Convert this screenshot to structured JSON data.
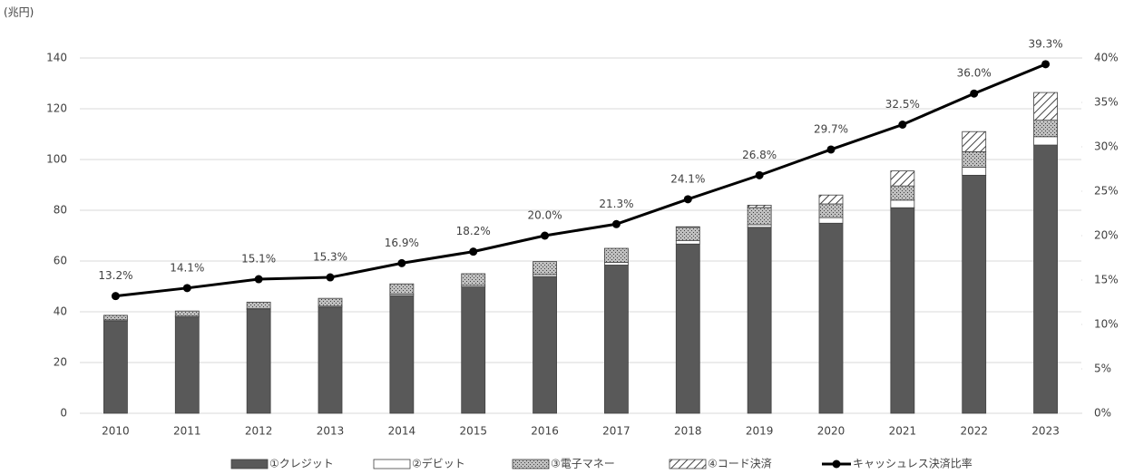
{
  "chart_data": {
    "type": "bar",
    "stacked": true,
    "unit_label": "(兆円)",
    "categories": [
      "2010",
      "2011",
      "2012",
      "2013",
      "2014",
      "2015",
      "2016",
      "2017",
      "2018",
      "2019",
      "2020",
      "2021",
      "2022",
      "2023"
    ],
    "series": [
      {
        "name": "①クレジット",
        "color": "#595959",
        "values": [
          36.4,
          37.9,
          40.9,
          41.8,
          46.4,
          49.8,
          53.9,
          58.4,
          66.7,
          73.3,
          74.9,
          81.0,
          93.8,
          105.7
        ]
      },
      {
        "name": "②デビット",
        "color": "#ffffff",
        "values": [
          0.4,
          0.4,
          0.4,
          0.4,
          0.6,
          0.6,
          0.8,
          1.1,
          1.4,
          1.0,
          2.2,
          3.0,
          3.2,
          3.3
        ]
      },
      {
        "name": "③電子マネー",
        "color": "#a6a6a6",
        "pattern": "dots",
        "values": [
          1.8,
          2.0,
          2.5,
          3.1,
          4.0,
          4.6,
          5.1,
          5.5,
          5.2,
          6.8,
          5.4,
          5.6,
          6.1,
          6.5
        ]
      },
      {
        "name": "④コード決済",
        "color": "#ffffff",
        "pattern": "hatch",
        "values": [
          0,
          0,
          0,
          0,
          0,
          0,
          0,
          0,
          0.2,
          0.9,
          3.5,
          5.9,
          7.9,
          10.9
        ]
      },
      {
        "name": "キャッシュレス決済比率",
        "type": "line",
        "axis": "y2",
        "color": "#000000",
        "values": [
          13.2,
          14.1,
          15.1,
          15.3,
          16.9,
          18.2,
          20.0,
          21.3,
          24.1,
          26.8,
          29.7,
          32.5,
          36.0,
          39.3
        ],
        "value_labels": [
          "13.2%",
          "14.1%",
          "15.1%",
          "15.3%",
          "16.9%",
          "18.2%",
          "20.0%",
          "21.3%",
          "24.1%",
          "26.8%",
          "29.7%",
          "32.5%",
          "36.0%",
          "39.3%"
        ]
      }
    ],
    "ylim": [
      0,
      140
    ],
    "yticks": [
      0,
      20,
      40,
      60,
      80,
      100,
      120,
      140
    ],
    "y2lim": [
      0,
      40
    ],
    "y2ticks": [
      {
        "value": 0,
        "label": "0%"
      },
      {
        "value": 5,
        "label": "5%"
      },
      {
        "value": 10,
        "label": "10%"
      },
      {
        "value": 15,
        "label": "15%"
      },
      {
        "value": 20,
        "label": "20%"
      },
      {
        "value": 25,
        "label": "25%"
      },
      {
        "value": 30,
        "label": "30%"
      },
      {
        "value": 35,
        "label": "35%"
      },
      {
        "value": 40,
        "label": "40%"
      }
    ],
    "grid": true,
    "legend": "bottom"
  }
}
